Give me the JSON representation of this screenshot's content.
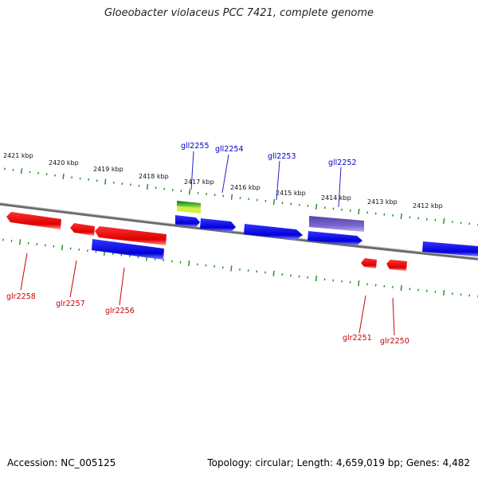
{
  "title": "Gloeobacter violaceus PCC 7421, complete genome",
  "footer": {
    "accession": "Accession: NC_005125",
    "summary": "Topology: circular; Length: 4,659,019 bp; Genes: 4,482"
  },
  "scale_labels": [
    "2421 kbp",
    "2420 kbp",
    "2419 kbp",
    "2418 kbp",
    "2417 kbp",
    "2416 kbp",
    "2415 kbp",
    "2414 kbp",
    "2413 kbp",
    "2412 kbp"
  ],
  "top_gene_labels": [
    "gll2255",
    "gll2254",
    "gll2253",
    "gll2252"
  ],
  "bottom_gene_labels": [
    "glr2258",
    "glr2257",
    "glr2256",
    "glr2251",
    "glr2250"
  ],
  "colors": {
    "forward_gene": "#0000e6",
    "reverse_gene": "#e60000",
    "highlight_purple": "#7766cc",
    "highlight_green": "#33aa22",
    "ruler": "#1f8a1f",
    "backbone": "#888888"
  }
}
